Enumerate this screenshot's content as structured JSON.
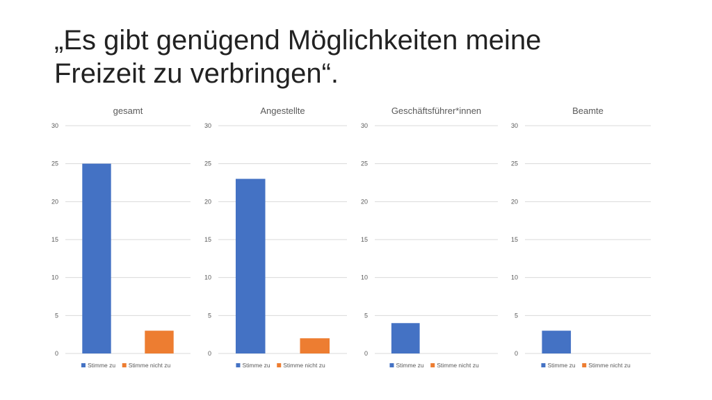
{
  "slide": {
    "title_line1": "„Es gibt genügend Möglichkeiten meine",
    "title_line2": "Freizeit zu verbringen“."
  },
  "colors": {
    "stimme_zu": "#4472C4",
    "stimme_nicht_zu": "#ED7D31",
    "gridline": "#D9D9D9",
    "axis_text": "#595959"
  },
  "chart_data": [
    {
      "type": "bar",
      "title": "gesamt",
      "categories": [
        "Stimme zu",
        "Stimme nicht zu"
      ],
      "values": [
        25,
        3
      ],
      "ylim": [
        0,
        30
      ],
      "yticks": [
        0,
        5,
        10,
        15,
        20,
        25,
        30
      ],
      "grid": true,
      "legend": "bottom",
      "legend_labels": [
        "Stimme zu",
        "Stimme nicht zu"
      ]
    },
    {
      "type": "bar",
      "title": "Angestellte",
      "categories": [
        "Stimme zu",
        "Stimme nicht zu"
      ],
      "values": [
        23,
        2
      ],
      "ylim": [
        0,
        30
      ],
      "yticks": [
        0,
        5,
        10,
        15,
        20,
        25,
        30
      ],
      "grid": true,
      "legend": "bottom",
      "legend_labels": [
        "Stimme zu",
        "Stimme nicht zu"
      ]
    },
    {
      "type": "bar",
      "title": "Geschäftsführer*innen",
      "categories": [
        "Stimme zu",
        "Stimme nicht zu"
      ],
      "values": [
        4,
        0
      ],
      "ylim": [
        0,
        30
      ],
      "yticks": [
        0,
        5,
        10,
        15,
        20,
        25,
        30
      ],
      "grid": true,
      "legend": "bottom",
      "legend_labels": [
        "Stimme zu",
        "Stimme nicht zu"
      ]
    },
    {
      "type": "bar",
      "title": "Beamte",
      "categories": [
        "Stimme zu",
        "Stimme nicht zu"
      ],
      "values": [
        3,
        0
      ],
      "ylim": [
        0,
        30
      ],
      "yticks": [
        0,
        5,
        10,
        15,
        20,
        25,
        30
      ],
      "grid": true,
      "legend": "bottom",
      "legend_labels": [
        "Stimme zu",
        "Stimme nicht zu"
      ]
    }
  ]
}
